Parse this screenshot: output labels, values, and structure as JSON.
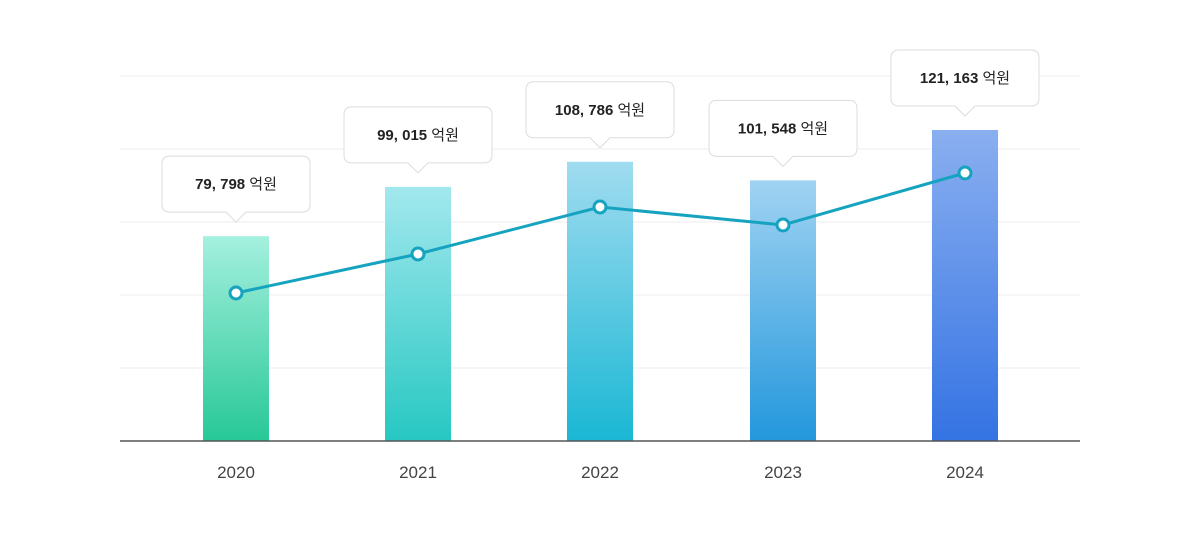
{
  "chart_data": {
    "type": "bar",
    "categories": [
      "2020",
      "2021",
      "2022",
      "2023",
      "2024"
    ],
    "values": [
      79798,
      99015,
      108786,
      101548,
      121163
    ],
    "value_labels": [
      "79, 798",
      "99, 015",
      "108, 786",
      "101, 548",
      "121, 163"
    ],
    "unit": "억원",
    "overlay_line": true,
    "grid": true,
    "colors": {
      "bar_gradients": [
        [
          "#a4f0de",
          "#27c897"
        ],
        [
          "#a2e8ee",
          "#27c8c2"
        ],
        [
          "#a0dcf0",
          "#1ab7d4"
        ],
        [
          "#a0d3f2",
          "#2397dc"
        ],
        [
          "#8aaff0",
          "#3473e3"
        ]
      ],
      "line": "#16a3c0",
      "marker_fill": "#ffffff",
      "baseline": "#555555",
      "grid": "#ececec",
      "callout_border": "#dcdcdc"
    }
  }
}
